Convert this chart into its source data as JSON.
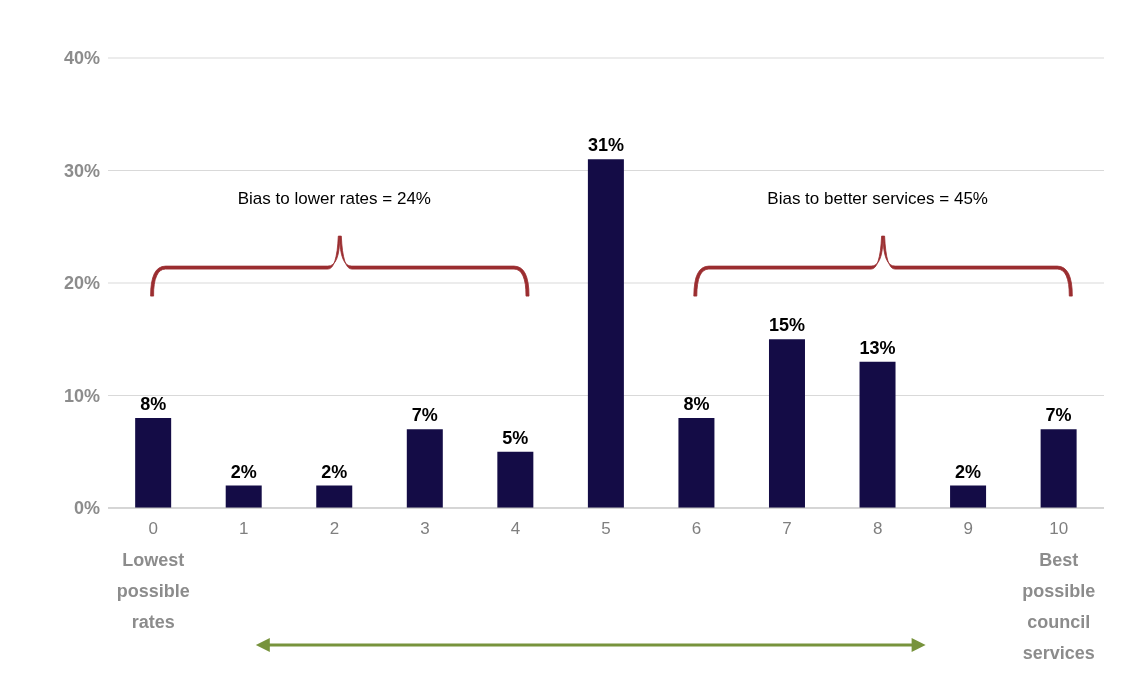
{
  "chart_data": {
    "type": "bar",
    "categories": [
      "0",
      "1",
      "2",
      "3",
      "4",
      "5",
      "6",
      "7",
      "8",
      "9",
      "10"
    ],
    "values": [
      8,
      2,
      2,
      7,
      5,
      31,
      8,
      15,
      13,
      2,
      7
    ],
    "value_labels": [
      "8%",
      "2%",
      "2%",
      "7%",
      "5%",
      "31%",
      "8%",
      "15%",
      "13%",
      "2%",
      "7%"
    ],
    "color": "#140c46",
    "ylim": [
      0,
      40
    ],
    "yticks": [
      {
        "value": 0,
        "label": "0%"
      },
      {
        "value": 10,
        "label": "10%"
      },
      {
        "value": 20,
        "label": "20%"
      },
      {
        "value": 30,
        "label": "30%"
      },
      {
        "value": 40,
        "label": "40%"
      }
    ],
    "grid": "y",
    "annotations": [
      "Bias to lower rates = 24%",
      "Bias to better services = 45%",
      "Lowest possible rates",
      "Best possible council services"
    ]
  }
}
